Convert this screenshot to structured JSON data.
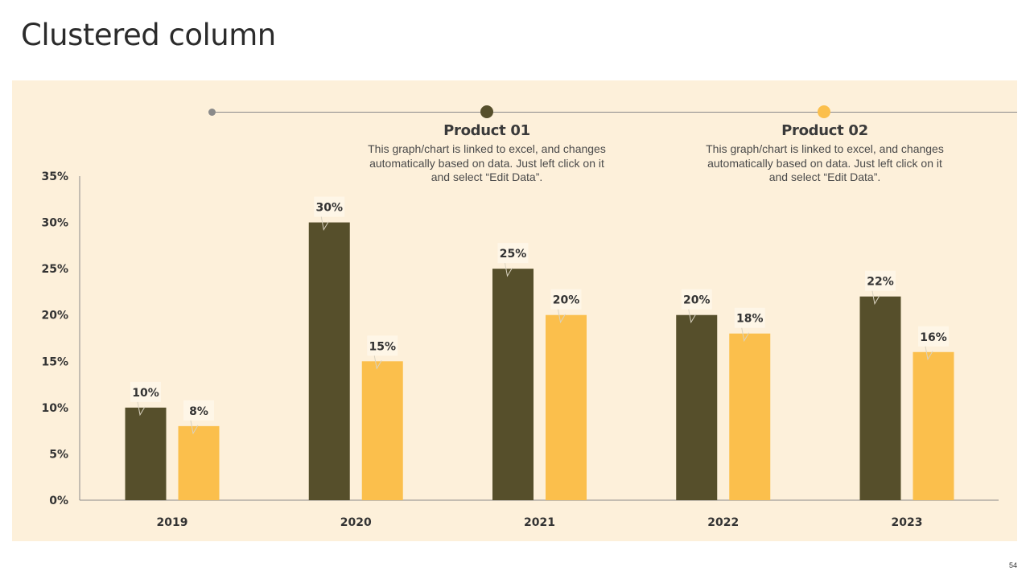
{
  "slide": {
    "title": "Clustered column",
    "page_number": "54"
  },
  "legend": [
    {
      "name": "Product 01",
      "color": "#564f2b",
      "description": "This graph/chart is linked to excel, and changes automatically based on data. Just left click on it and select “Edit Data”."
    },
    {
      "name": "Product 02",
      "color": "#fbbf4c",
      "description": "This graph/chart is linked to excel, and changes automatically based on data. Just left click on it and select “Edit Data”."
    }
  ],
  "chart_data": {
    "type": "bar",
    "title": "",
    "xlabel": "",
    "ylabel": "",
    "categories": [
      "2019",
      "2020",
      "2021",
      "2022",
      "2023"
    ],
    "series": [
      {
        "name": "Product 01",
        "color": "#564f2b",
        "values": [
          10,
          30,
          25,
          20,
          22
        ]
      },
      {
        "name": "Product 02",
        "color": "#fbbf4c",
        "values": [
          8,
          15,
          20,
          18,
          16
        ]
      }
    ],
    "ylim": [
      0,
      35
    ],
    "yticks": [
      0,
      5,
      10,
      15,
      20,
      25,
      30,
      35
    ],
    "value_suffix": "%",
    "grid": false,
    "legend_position": "top"
  }
}
